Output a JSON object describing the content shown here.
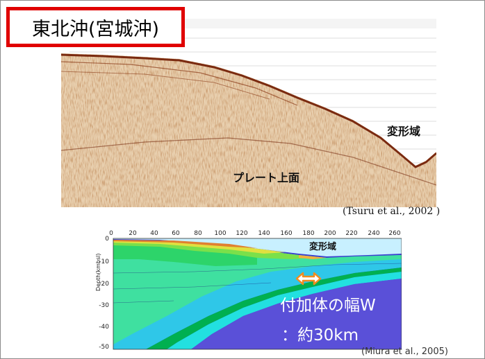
{
  "title": "東北沖(宮城沖)",
  "seismic_section": {
    "label_deformation": "変形域",
    "label_plate_top": "プレート上面",
    "citation": "(Tsuru et al., 2002 )"
  },
  "model_section": {
    "label_deformation": "変形域",
    "width_label": "付加体の幅W",
    "width_value": "：約30km",
    "citation": "(Miura et al., 2005)",
    "y_axis_label": "Depth(kmbsl)",
    "x_ticks": [
      "0",
      "20",
      "40",
      "60",
      "80",
      "100",
      "120",
      "140",
      "160",
      "180",
      "200",
      "220",
      "240",
      "260"
    ],
    "y_ticks": [
      "0",
      "-10",
      "-20",
      "-30",
      "-40",
      "-50"
    ]
  },
  "colors": {
    "title_border": "#e00000",
    "arrow": "#f28c1e"
  }
}
